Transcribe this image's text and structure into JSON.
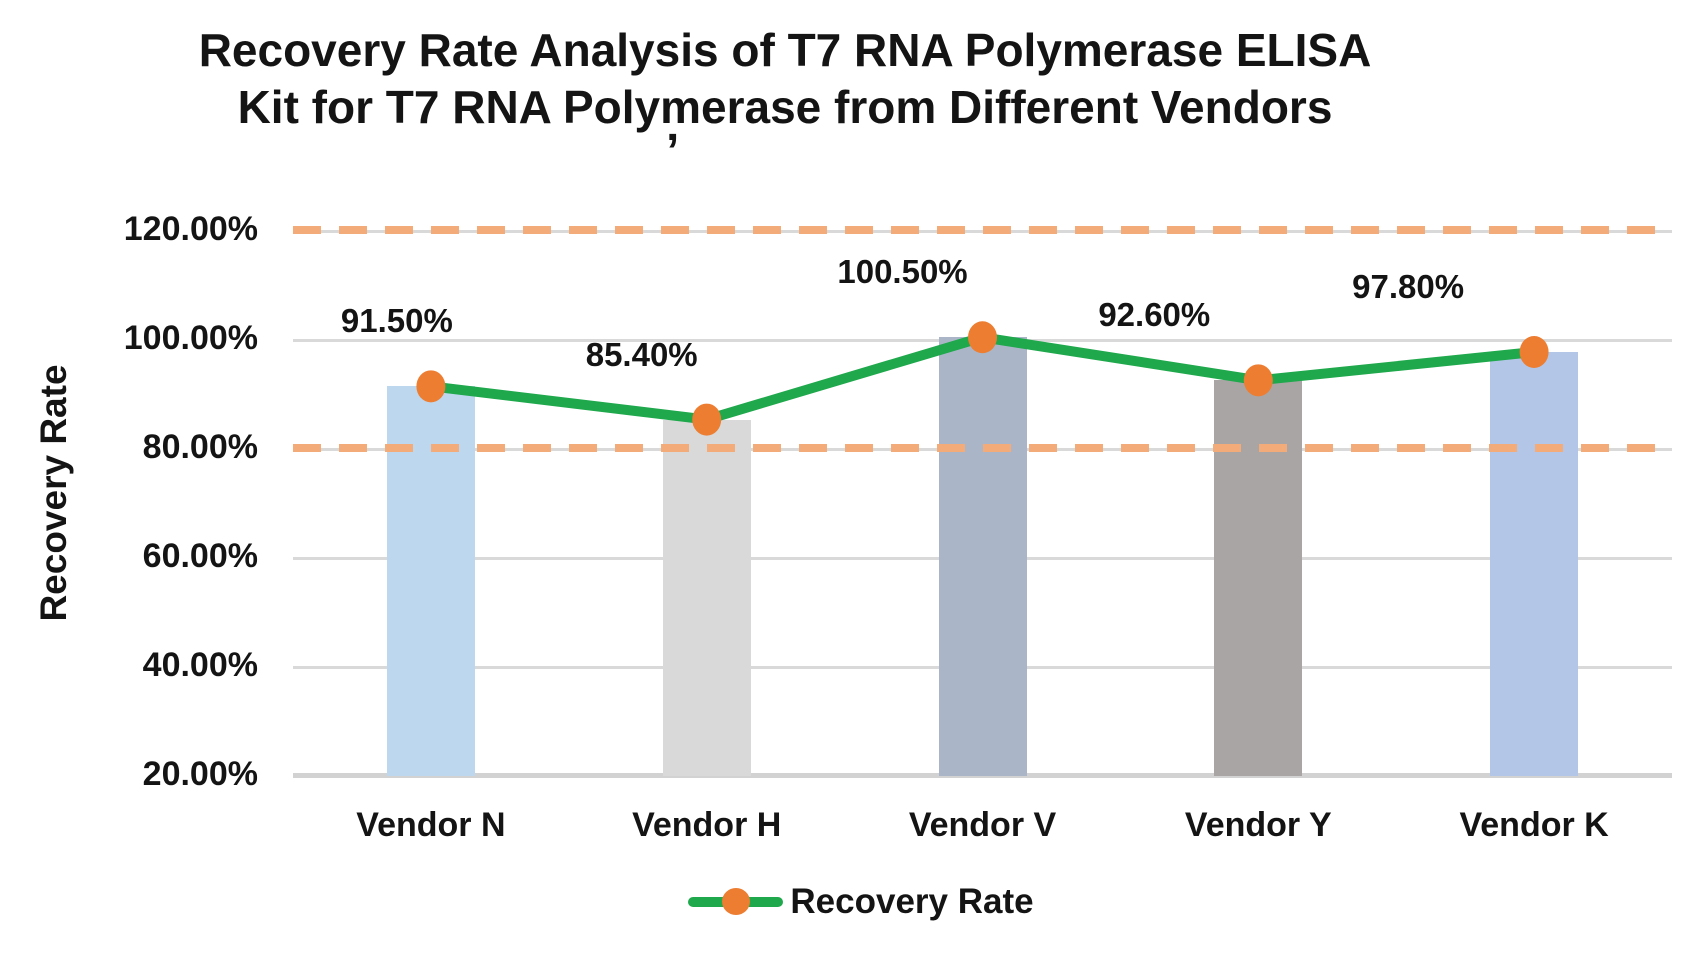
{
  "title": {
    "line1": "Recovery Rate Analysis of T7 RNA Polymerase ELISA",
    "line2": "Kit for T7 RNA Polymerase from Different Vendors",
    "stray_mark": "’"
  },
  "y_axis": {
    "title": "Recovery Rate",
    "tick_labels": [
      "120.00%",
      "100.00%",
      "80.00%",
      "60.00%",
      "40.00%",
      "20.00%"
    ],
    "tick_values": [
      120,
      100,
      80,
      60,
      40,
      20
    ]
  },
  "x_axis": {
    "categories": [
      "Vendor N",
      "Vendor H",
      "Vendor V",
      "Vendor Y",
      "Vendor K"
    ]
  },
  "legend": {
    "label": "Recovery Rate"
  },
  "colors": {
    "line_green": "#1fa84c",
    "marker_orange": "#ed7d31",
    "dashed_orange": "#f3ac79",
    "gridline": "#d9d9d9",
    "axis_line": "#d2d2d2",
    "bar_colors": [
      "#bdd7ee",
      "#d9d9d9",
      "#aab6c8",
      "#a9a5a5",
      "#b4c6e7"
    ]
  },
  "chart_data": {
    "type": "combo",
    "title": "Recovery Rate Analysis of T7 RNA Polymerase ELISA Kit for T7 RNA Polymerase from Different Vendors",
    "categories": [
      "Vendor N",
      "Vendor H",
      "Vendor V",
      "Vendor Y",
      "Vendor K"
    ],
    "series": [
      {
        "name": "Recovery Rate",
        "type": "bar",
        "values": [
          91.5,
          85.4,
          100.5,
          92.6,
          97.8
        ]
      },
      {
        "name": "Recovery Rate",
        "type": "line",
        "values": [
          91.5,
          85.4,
          100.5,
          92.6,
          97.8
        ]
      }
    ],
    "data_labels": [
      "91.50%",
      "85.40%",
      "100.50%",
      "92.60%",
      "97.80%"
    ],
    "reference_lines": [
      120,
      80
    ],
    "xlabel": "",
    "ylabel": "Recovery Rate",
    "ylim": [
      20,
      129.3
    ],
    "yticks": [
      20,
      40,
      60,
      80,
      100,
      120
    ],
    "grid": true,
    "legend_position": "bottom",
    "label_dx": [
      -34,
      -65,
      -80,
      -104,
      -126
    ]
  }
}
